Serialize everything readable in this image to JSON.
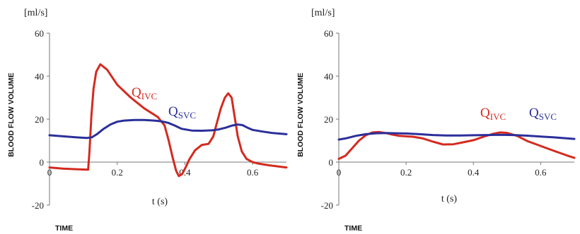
{
  "chart_data": [
    {
      "type": "line",
      "unit_label": "[ml/s]",
      "ylabel": "BLOOD FLOW VOLUME",
      "xlabel": "t (s)",
      "bottom_label": "TIME",
      "ylim": [
        -20,
        60
      ],
      "xlim": [
        0,
        0.7
      ],
      "yticks": [
        -20,
        0,
        20,
        40,
        60
      ],
      "xticks": [
        0,
        0.2,
        0.4,
        0.6
      ],
      "ytick_labels": [
        "-20",
        "0",
        "20",
        "40",
        "60"
      ],
      "xtick_labels": [
        "0",
        "0.2",
        "0.4",
        "0.6"
      ],
      "grid": false,
      "series": [
        {
          "name_main": "Q",
          "name_sub": "IVC",
          "color": "#d42a1f",
          "x": [
            0,
            0.04,
            0.08,
            0.114,
            0.118,
            0.124,
            0.13,
            0.138,
            0.15,
            0.17,
            0.2,
            0.24,
            0.28,
            0.32,
            0.34,
            0.352,
            0.364,
            0.374,
            0.382,
            0.392,
            0.402,
            0.414,
            0.43,
            0.45,
            0.47,
            0.484,
            0.494,
            0.506,
            0.518,
            0.528,
            0.538,
            0.546,
            0.556,
            0.568,
            0.582,
            0.6,
            0.62,
            0.65,
            0.7
          ],
          "y": [
            -2.5,
            -3,
            -3.3,
            -3.5,
            5,
            22,
            34,
            42,
            45.5,
            43,
            36,
            30,
            25,
            21,
            17,
            10,
            2,
            -4,
            -6.5,
            -5.5,
            -2.5,
            1.5,
            5.5,
            8,
            8.5,
            12,
            18,
            25,
            30,
            32,
            30,
            22,
            12,
            5,
            1.5,
            0,
            -0.8,
            -1.5,
            -2.5
          ]
        },
        {
          "name_main": "Q",
          "name_sub": "SVC",
          "color": "#2b2f9a",
          "x": [
            0,
            0.04,
            0.08,
            0.11,
            0.125,
            0.14,
            0.16,
            0.18,
            0.2,
            0.22,
            0.25,
            0.28,
            0.31,
            0.33,
            0.35,
            0.37,
            0.39,
            0.42,
            0.45,
            0.48,
            0.5,
            0.52,
            0.54,
            0.555,
            0.57,
            0.585,
            0.6,
            0.63,
            0.66,
            0.7
          ],
          "y": [
            12.5,
            12,
            11.5,
            11.2,
            11.5,
            13,
            15.5,
            17.5,
            18.8,
            19.3,
            19.6,
            19.6,
            19.3,
            19,
            18.3,
            17,
            15.5,
            14.7,
            14.6,
            14.8,
            15.2,
            16,
            17,
            17.5,
            17.2,
            16,
            15,
            14.2,
            13.5,
            13
          ]
        }
      ]
    },
    {
      "type": "line",
      "unit_label": "[ml/s]",
      "ylabel": "BLOOD FLOW VOLUME",
      "xlabel": "t (s)",
      "bottom_label": "TIME",
      "ylim": [
        -20,
        60
      ],
      "xlim": [
        0,
        0.7
      ],
      "yticks": [
        -20,
        0,
        20,
        40,
        60
      ],
      "xticks": [
        0,
        0.2,
        0.4,
        0.6
      ],
      "ytick_labels": [
        "-20",
        "0",
        "20",
        "40",
        "60"
      ],
      "xtick_labels": [
        "0",
        "0.2",
        "0.4",
        "0.6"
      ],
      "grid": false,
      "series": [
        {
          "name_main": "Q",
          "name_sub": "IVC",
          "color": "#d42a1f",
          "x": [
            0,
            0.02,
            0.04,
            0.06,
            0.08,
            0.1,
            0.12,
            0.14,
            0.16,
            0.18,
            0.2,
            0.22,
            0.25,
            0.28,
            0.31,
            0.34,
            0.37,
            0.4,
            0.43,
            0.46,
            0.48,
            0.5,
            0.53,
            0.56,
            0.6,
            0.64,
            0.68,
            0.7
          ],
          "y": [
            1.5,
            3,
            6.5,
            10,
            12.5,
            13.8,
            14,
            13.5,
            12.8,
            12.2,
            12,
            11.8,
            11,
            9.5,
            8.2,
            8.3,
            9.2,
            10.2,
            11.8,
            13.2,
            13.8,
            13.6,
            12.2,
            9.8,
            7.5,
            5.2,
            3,
            2
          ]
        },
        {
          "name_main": "Q",
          "name_sub": "SVC",
          "color": "#2b2f9a",
          "x": [
            0,
            0.02,
            0.05,
            0.08,
            0.11,
            0.14,
            0.17,
            0.2,
            0.24,
            0.28,
            0.32,
            0.36,
            0.4,
            0.44,
            0.48,
            0.52,
            0.56,
            0.6,
            0.64,
            0.7
          ],
          "y": [
            10.5,
            11,
            12.2,
            13,
            13.4,
            13.5,
            13.4,
            13.3,
            13,
            12.6,
            12.4,
            12.4,
            12.5,
            12.6,
            12.7,
            12.6,
            12.3,
            11.9,
            11.5,
            10.8
          ]
        }
      ]
    }
  ]
}
